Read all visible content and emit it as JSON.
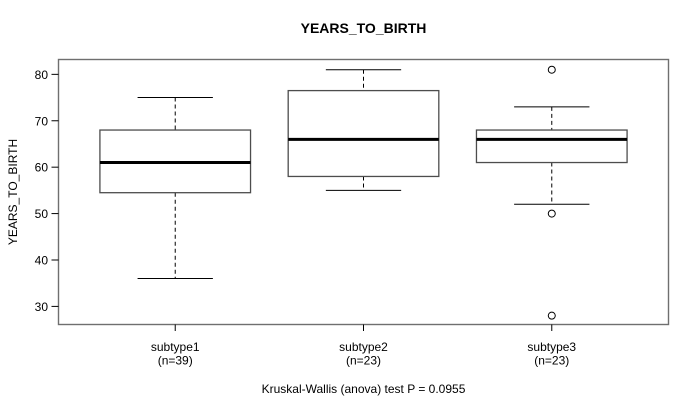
{
  "chart_data": {
    "type": "boxplot",
    "title": "YEARS_TO_BIRTH",
    "ylabel": "YEARS_TO_BIRTH",
    "caption": "Kruskal-Wallis (anova) test P = 0.0955",
    "yticks": [
      30,
      40,
      50,
      60,
      70,
      80
    ],
    "ylim": [
      26.1,
      83.2
    ],
    "grid": false,
    "legend": "none",
    "colors": {
      "background": "#ffffff",
      "line": "#000000",
      "frame": "#6f6f6f"
    },
    "groups": [
      {
        "label": "subtype1",
        "count_label": "(n=39)",
        "n": 39,
        "whisker_low": 36,
        "q1": 54.5,
        "median": 61,
        "q3": 68,
        "whisker_high": 75,
        "outliers": []
      },
      {
        "label": "subtype2",
        "count_label": "(n=23)",
        "n": 23,
        "whisker_low": 55,
        "q1": 58,
        "median": 66,
        "q3": 76.5,
        "whisker_high": 81,
        "outliers": []
      },
      {
        "label": "subtype3",
        "count_label": "(n=23)",
        "n": 23,
        "whisker_low": 52,
        "q1": 61,
        "median": 66,
        "q3": 68,
        "whisker_high": 73,
        "outliers": [
          81,
          50,
          28
        ]
      }
    ]
  }
}
